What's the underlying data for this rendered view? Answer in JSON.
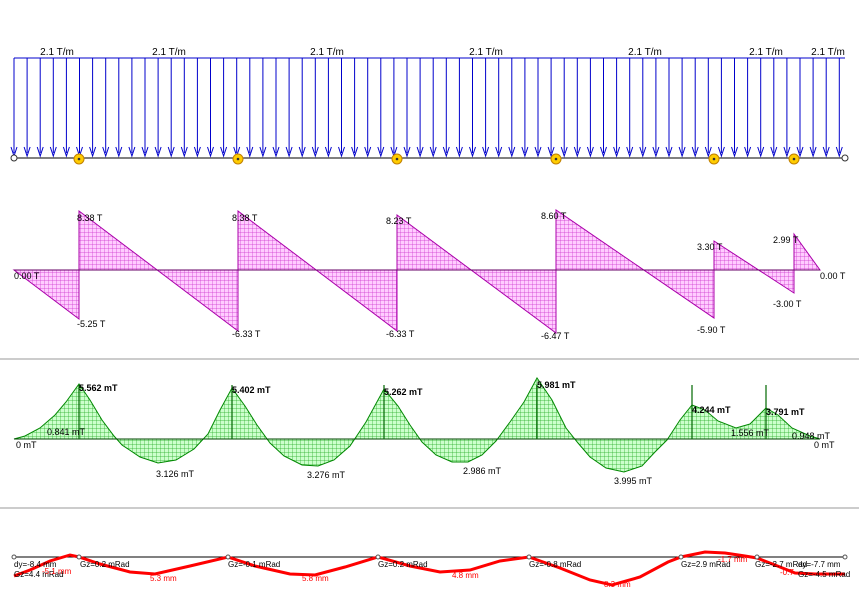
{
  "colors": {
    "load": "#0000cc",
    "support": "#ffcc00",
    "support_stroke": "#c08000",
    "shear_fill": "#ff66ff",
    "shear_stroke": "#aa00aa",
    "moment_fill": "#66ee66",
    "moment_stroke": "#008800",
    "deflection": "#ff0000",
    "separator": "#999999"
  },
  "supports_x": [
    79,
    238,
    397,
    556,
    714,
    794
  ],
  "load": {
    "labels": [
      "2.1 T/m",
      "2.1 T/m",
      "2.1 T/m",
      "2.1 T/m",
      "2.1 T/m",
      "2.1 T/m",
      "2.1 T/m"
    ]
  },
  "shear": {
    "labels": [
      {
        "text": "0.00 T"
      },
      {
        "text": "8.38 T"
      },
      {
        "text": "-5.25 T"
      },
      {
        "text": "8.38 T"
      },
      {
        "text": "-6.33 T"
      },
      {
        "text": "8.23 T"
      },
      {
        "text": "-6.33 T"
      },
      {
        "text": "8.60 T"
      },
      {
        "text": "-6.47 T"
      },
      {
        "text": "3.30 T"
      },
      {
        "text": "-5.90 T"
      },
      {
        "text": "2.99 T"
      },
      {
        "text": "-3.00 T"
      },
      {
        "text": "0.00 T"
      }
    ]
  },
  "moment": {
    "labels": [
      {
        "text": "0 mT"
      },
      {
        "text": "0.841 mT"
      },
      {
        "text": "5.562 mT"
      },
      {
        "text": "3.126 mT"
      },
      {
        "text": "5.402 mT"
      },
      {
        "text": "3.276 mT"
      },
      {
        "text": "5.262 mT"
      },
      {
        "text": "2.986 mT"
      },
      {
        "text": "5.981 mT"
      },
      {
        "text": "3.995 mT"
      },
      {
        "text": "4.244 mT"
      },
      {
        "text": "1.556 mT"
      },
      {
        "text": "3.791 mT"
      },
      {
        "text": "0.948 mT"
      },
      {
        "text": "0 mT"
      }
    ]
  },
  "deflection": {
    "labels": [
      {
        "text": "dy=-8.4 mm",
        "color": "#000000"
      },
      {
        "text": "Gz=4.4 mRad",
        "color": "#000000"
      },
      {
        "text": "-5.1 mm",
        "color": "#ff0000"
      },
      {
        "text": "Gz=0.2 mRad",
        "color": "#000000"
      },
      {
        "text": "5.3 mm",
        "color": "#ff0000"
      },
      {
        "text": "Gz=-0.1 mRad",
        "color": "#000000"
      },
      {
        "text": "5.8 mm",
        "color": "#ff0000"
      },
      {
        "text": "Gz=0.2 mRad",
        "color": "#000000"
      },
      {
        "text": "4.8 mm",
        "color": "#ff0000"
      },
      {
        "text": "Gz=-0.8 mRad",
        "color": "#000000"
      },
      {
        "text": "8.3 mm",
        "color": "#ff0000"
      },
      {
        "text": "Gz=2.9 mRad",
        "color": "#000000"
      },
      {
        "text": "-1.7 mm",
        "color": "#ff0000"
      },
      {
        "text": "Gz=-2.7 mRad",
        "color": "#000000"
      },
      {
        "text": "-0.7",
        "color": "#ff0000"
      },
      {
        "text": "dy=-7.7 mm",
        "color": "#000000"
      },
      {
        "text": "Gz=-4.5 mRad",
        "color": "#000000"
      }
    ]
  }
}
